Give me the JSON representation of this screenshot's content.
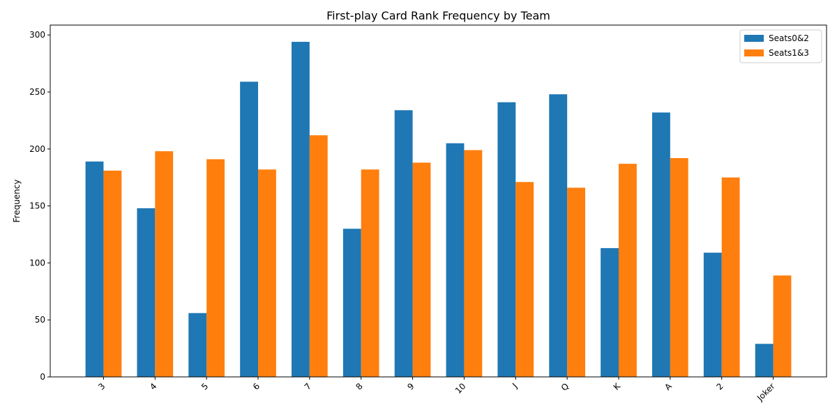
{
  "chart_data": {
    "type": "bar",
    "title": "First-play Card Rank Frequency by Team",
    "xlabel": "",
    "ylabel": "Frequency",
    "categories": [
      "3",
      "4",
      "5",
      "6",
      "7",
      "8",
      "9",
      "10",
      "J",
      "Q",
      "K",
      "A",
      "2",
      "Joker"
    ],
    "series": [
      {
        "name": "Seats0&2",
        "color": "#1f77b4",
        "values": [
          189,
          148,
          56,
          259,
          294,
          130,
          234,
          205,
          241,
          248,
          113,
          232,
          109,
          29
        ]
      },
      {
        "name": "Seats1&3",
        "color": "#ff7f0e",
        "values": [
          181,
          198,
          191,
          182,
          212,
          182,
          188,
          199,
          171,
          166,
          187,
          192,
          175,
          89
        ]
      }
    ],
    "ylim": [
      0,
      308.7
    ],
    "yticks": [
      0,
      50,
      100,
      150,
      200,
      250,
      300
    ],
    "grid": false,
    "legend": "top-right"
  }
}
